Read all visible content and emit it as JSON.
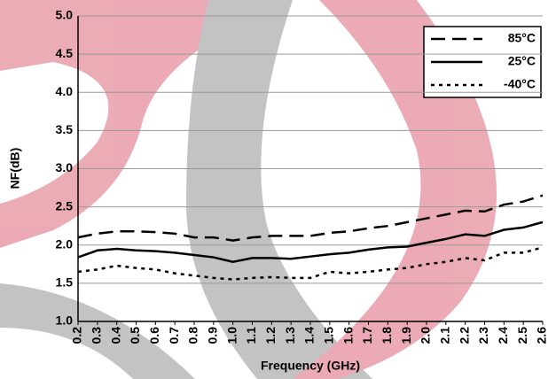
{
  "chart_data": {
    "type": "line",
    "xlabel": "Frequency (GHz)",
    "ylabel": "NF(dB)",
    "x": [
      0.2,
      0.3,
      0.4,
      0.5,
      0.6,
      0.7,
      0.8,
      0.9,
      1.0,
      1.1,
      1.2,
      1.3,
      1.4,
      1.5,
      1.6,
      1.7,
      1.8,
      1.9,
      2.0,
      2.1,
      2.2,
      2.3,
      2.4,
      2.5,
      2.6
    ],
    "xlim": [
      0.2,
      2.6
    ],
    "xticks": [
      0.2,
      0.3,
      0.4,
      0.5,
      0.6,
      0.7,
      0.8,
      0.9,
      {
        "value": 1,
        "label": "1.0"
      },
      1.1,
      1.2,
      1.3,
      1.4,
      1.5,
      1.6,
      1.7,
      1.8,
      1.9,
      {
        "value": 2,
        "label": "2.0"
      },
      2.1,
      2.2,
      2.3,
      2.4,
      2.5,
      2.6
    ],
    "ylim": [
      1,
      5
    ],
    "yticks": [
      {
        "value": 1,
        "label": "1.0"
      },
      1.5,
      {
        "value": 2,
        "label": "2.0"
      },
      2.5,
      {
        "value": 3,
        "label": "3.0"
      },
      3.5,
      {
        "value": 4,
        "label": "4.0"
      },
      4.5,
      {
        "value": 5,
        "label": "5.0"
      }
    ],
    "grid": true,
    "legend": "upper right",
    "series": [
      {
        "name": "85°C",
        "color": "#000000",
        "dash": "long",
        "values": [
          2.1,
          2.15,
          2.18,
          2.18,
          2.17,
          2.15,
          2.1,
          2.1,
          2.06,
          2.1,
          2.12,
          2.12,
          2.12,
          2.16,
          2.18,
          2.22,
          2.25,
          2.3,
          2.35,
          2.4,
          2.45,
          2.44,
          2.53,
          2.57,
          2.65
        ]
      },
      {
        "name": "25°C",
        "color": "#000000",
        "dash": "solid",
        "values": [
          1.84,
          1.93,
          1.95,
          1.93,
          1.92,
          1.9,
          1.87,
          1.84,
          1.78,
          1.83,
          1.83,
          1.82,
          1.85,
          1.88,
          1.9,
          1.94,
          1.97,
          1.98,
          2.03,
          2.08,
          2.14,
          2.12,
          2.2,
          2.23,
          2.3
        ]
      },
      {
        "name": "-40°C",
        "color": "#000000",
        "dash": "short",
        "values": [
          1.65,
          1.68,
          1.73,
          1.7,
          1.68,
          1.63,
          1.6,
          1.57,
          1.55,
          1.57,
          1.58,
          1.57,
          1.57,
          1.65,
          1.63,
          1.65,
          1.68,
          1.7,
          1.75,
          1.78,
          1.83,
          1.8,
          1.9,
          1.9,
          1.97
        ]
      }
    ]
  }
}
